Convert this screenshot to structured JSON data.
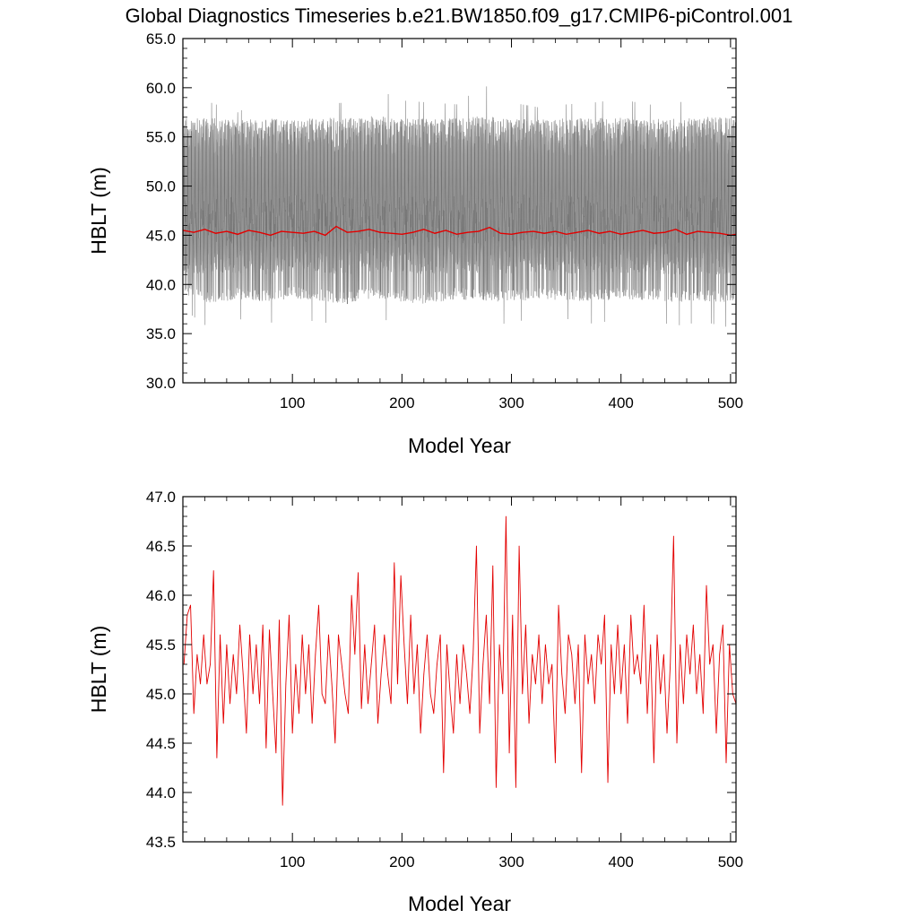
{
  "title": "Global Diagnostics Timeseries b.e21.BW1850.f09_g17.CMIP6-piControl.001",
  "colors": {
    "annual": "#e30000",
    "monthly": "#000000",
    "frame": "#000000"
  },
  "chart_data": [
    {
      "type": "line",
      "xlabel": "Model Year",
      "ylabel": "HBLT (m)",
      "xlim": [
        0,
        505
      ],
      "ylim": [
        30.0,
        65.0
      ],
      "x_ticks": [
        100,
        200,
        300,
        400,
        500
      ],
      "x_tick_labels": [
        "100",
        "200",
        "300",
        "400",
        "500"
      ],
      "y_ticks": [
        30.0,
        35.0,
        40.0,
        45.0,
        50.0,
        55.0,
        60.0,
        65.0
      ],
      "y_tick_labels": [
        "30.0",
        "35.0",
        "40.0",
        "45.0",
        "50.0",
        "55.0",
        "60.0",
        "65.0"
      ],
      "grid": false,
      "series": [
        {
          "color": "#000000",
          "x": [
            0,
            25,
            50,
            75,
            100,
            125,
            150,
            175,
            200,
            225,
            250,
            275,
            300,
            325,
            350,
            375,
            400,
            425,
            450,
            475,
            500,
            505
          ],
          "low": [
            37.5,
            35.5,
            36.5,
            36.0,
            36.5,
            36.2,
            35.8,
            36.5,
            36.2,
            35.0,
            36.5,
            35.5,
            36.2,
            36.5,
            36.5,
            36.0,
            36.5,
            36.4,
            35.8,
            36.2,
            35.6,
            36.0
          ],
          "high": [
            58.5,
            59.0,
            58.0,
            59.5,
            58.2,
            58.8,
            59.0,
            60.5,
            59.2,
            59.0,
            58.8,
            60.8,
            59.0,
            58.5,
            58.8,
            59.0,
            59.3,
            58.8,
            58.6,
            60.9,
            59.0,
            58.0
          ],
          "typical_low": [
            39.0,
            38.0,
            38.5,
            38.2,
            38.6,
            38.3,
            38.0,
            38.6,
            38.2,
            38.0,
            38.5,
            38.3,
            38.2,
            38.5,
            38.4,
            38.2,
            38.5,
            38.4,
            38.2,
            38.3,
            38.2,
            38.5
          ],
          "typical_high": [
            56.0,
            56.0,
            55.8,
            56.0,
            55.8,
            56.0,
            56.0,
            56.2,
            56.0,
            55.9,
            56.0,
            56.2,
            56.0,
            55.8,
            56.0,
            56.0,
            56.0,
            55.9,
            55.9,
            56.1,
            56.0,
            55.8
          ],
          "core_low": [
            40.0,
            39.5,
            39.8,
            39.7,
            40.0,
            39.8,
            39.6,
            40.0,
            39.8,
            39.5,
            39.9,
            39.7,
            39.8,
            39.9,
            39.8,
            39.7,
            39.9,
            39.8,
            39.7,
            39.8,
            39.6,
            39.9
          ],
          "core_high": [
            44.2,
            44.0,
            44.2,
            44.1,
            44.3,
            44.2,
            44.0,
            44.3,
            44.1,
            44.0,
            44.2,
            44.1,
            44.2,
            44.2,
            44.1,
            44.0,
            44.2,
            44.1,
            44.0,
            44.1,
            44.0,
            44.2
          ]
        },
        {
          "color": "#e30000",
          "x": [
            0,
            10,
            20,
            30,
            40,
            50,
            60,
            70,
            80,
            90,
            100,
            110,
            120,
            130,
            140,
            150,
            160,
            170,
            180,
            190,
            200,
            210,
            220,
            230,
            240,
            250,
            260,
            270,
            280,
            290,
            300,
            310,
            320,
            330,
            340,
            350,
            360,
            370,
            380,
            390,
            400,
            410,
            420,
            430,
            440,
            450,
            460,
            470,
            480,
            490,
            500,
            505
          ],
          "values": [
            45.5,
            45.3,
            45.6,
            45.2,
            45.4,
            45.1,
            45.5,
            45.3,
            45.0,
            45.4,
            45.3,
            45.2,
            45.4,
            45.0,
            45.9,
            45.3,
            45.4,
            45.6,
            45.3,
            45.2,
            45.1,
            45.3,
            45.6,
            45.2,
            45.5,
            45.1,
            45.3,
            45.4,
            45.8,
            45.2,
            45.1,
            45.3,
            45.4,
            45.2,
            45.4,
            45.1,
            45.3,
            45.5,
            45.2,
            45.4,
            45.1,
            45.3,
            45.5,
            45.2,
            45.3,
            45.6,
            45.1,
            45.4,
            45.3,
            45.2,
            45.0,
            45.1
          ]
        }
      ]
    },
    {
      "type": "line",
      "xlabel": "Model Year",
      "ylabel": "HBLT (m)",
      "xlim": [
        0,
        505
      ],
      "ylim": [
        43.5,
        47.0
      ],
      "x_ticks": [
        100,
        200,
        300,
        400,
        500
      ],
      "x_tick_labels": [
        "100",
        "200",
        "300",
        "400",
        "500"
      ],
      "y_ticks": [
        43.5,
        44.0,
        44.5,
        45.0,
        45.5,
        46.0,
        46.5,
        47.0
      ],
      "y_tick_labels": [
        "43.5",
        "44.0",
        "44.5",
        "45.0",
        "45.5",
        "46.0",
        "46.5",
        "47.0"
      ],
      "grid": false,
      "series": [
        {
          "color": "#e30000",
          "x": [
            1,
            4,
            7,
            10,
            13,
            16,
            19,
            22,
            25,
            28,
            31,
            34,
            37,
            40,
            43,
            46,
            49,
            52,
            55,
            58,
            61,
            64,
            67,
            70,
            73,
            76,
            79,
            82,
            85,
            88,
            91,
            94,
            97,
            100,
            103,
            106,
            109,
            112,
            115,
            118,
            121,
            124,
            127,
            130,
            133,
            136,
            139,
            142,
            145,
            148,
            151,
            154,
            157,
            160,
            163,
            166,
            169,
            172,
            175,
            178,
            181,
            184,
            187,
            190,
            193,
            196,
            199,
            202,
            205,
            208,
            211,
            214,
            217,
            220,
            223,
            226,
            229,
            232,
            235,
            238,
            241,
            244,
            247,
            250,
            253,
            256,
            259,
            262,
            265,
            268,
            271,
            274,
            277,
            280,
            283,
            286,
            289,
            292,
            295,
            298,
            301,
            304,
            307,
            310,
            313,
            316,
            319,
            322,
            325,
            328,
            331,
            334,
            337,
            340,
            343,
            346,
            349,
            352,
            355,
            358,
            361,
            364,
            367,
            370,
            373,
            376,
            379,
            382,
            385,
            388,
            391,
            394,
            397,
            400,
            403,
            406,
            409,
            412,
            415,
            418,
            421,
            424,
            427,
            430,
            433,
            436,
            439,
            442,
            445,
            448,
            451,
            454,
            457,
            460,
            463,
            466,
            469,
            472,
            475,
            478,
            481,
            484,
            487,
            490,
            493,
            496,
            499,
            502,
            505
          ],
          "values": [
            45.3,
            45.8,
            45.9,
            44.8,
            45.4,
            45.1,
            45.6,
            45.1,
            45.3,
            46.25,
            44.35,
            45.6,
            44.7,
            45.5,
            44.9,
            45.4,
            45.0,
            45.7,
            45.2,
            44.6,
            45.6,
            45.0,
            45.5,
            44.9,
            45.7,
            44.45,
            45.65,
            45.0,
            44.4,
            45.75,
            43.87,
            45.1,
            45.8,
            44.6,
            45.3,
            44.8,
            45.6,
            45.0,
            45.5,
            44.7,
            45.4,
            45.9,
            45.0,
            44.9,
            45.6,
            45.1,
            44.5,
            45.6,
            45.3,
            45.0,
            44.8,
            46.0,
            45.4,
            46.23,
            44.85,
            45.5,
            44.9,
            45.3,
            45.7,
            44.7,
            45.2,
            45.6,
            45.2,
            44.9,
            46.33,
            45.1,
            46.2,
            45.5,
            44.9,
            45.8,
            45.0,
            45.5,
            44.6,
            45.2,
            45.6,
            45.0,
            44.8,
            45.3,
            45.6,
            44.2,
            45.5,
            45.0,
            44.6,
            45.4,
            44.9,
            45.5,
            45.2,
            44.8,
            45.4,
            46.5,
            44.6,
            45.3,
            45.8,
            44.9,
            46.3,
            44.05,
            45.5,
            45.0,
            46.8,
            44.4,
            45.8,
            44.05,
            46.5,
            45.0,
            45.7,
            44.7,
            45.4,
            45.1,
            45.6,
            44.9,
            45.5,
            45.1,
            45.3,
            44.3,
            45.9,
            45.2,
            44.8,
            45.6,
            45.4,
            44.9,
            45.5,
            44.2,
            45.6,
            45.1,
            45.4,
            44.9,
            45.6,
            45.3,
            45.8,
            44.1,
            45.5,
            45.0,
            45.7,
            45.0,
            45.5,
            44.7,
            45.8,
            45.2,
            45.4,
            45.1,
            45.9,
            44.8,
            45.5,
            44.3,
            45.6,
            45.0,
            45.4,
            44.6,
            45.3,
            46.6,
            44.5,
            45.5,
            44.9,
            45.6,
            45.2,
            45.7,
            45.0,
            45.4,
            44.8,
            46.1,
            45.3,
            45.5,
            44.6,
            45.4,
            45.7,
            44.3,
            45.5,
            45.0,
            44.9
          ]
        }
      ]
    }
  ]
}
